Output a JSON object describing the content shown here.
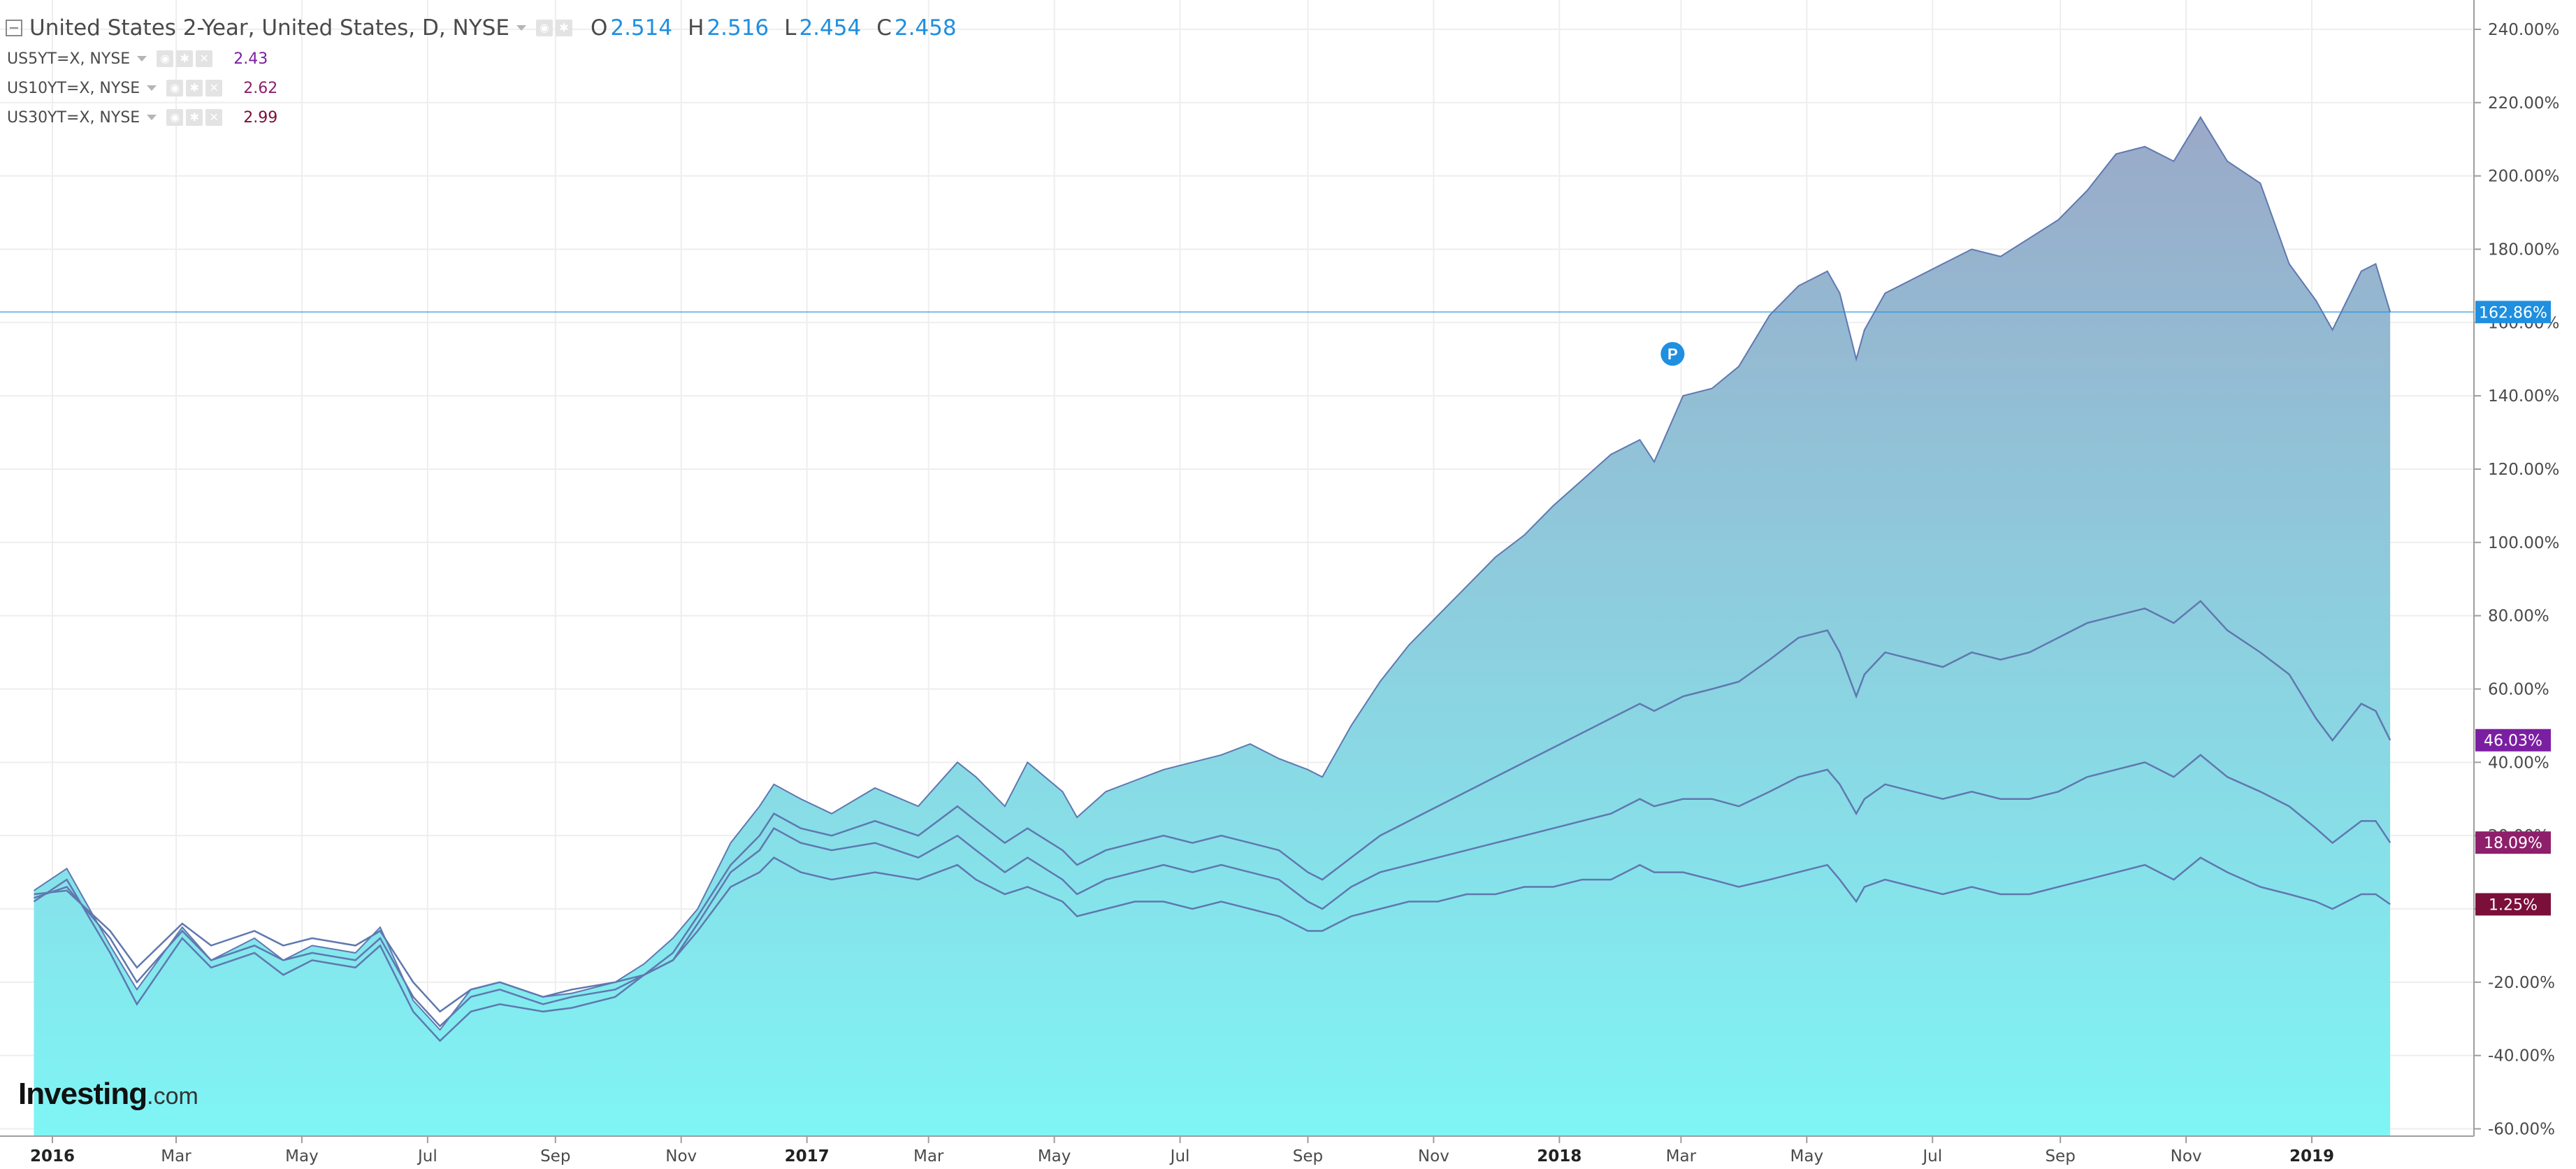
{
  "legend": {
    "main": {
      "title": "United States 2-Year, United States, D, NYSE",
      "ohlc": [
        {
          "key": "O",
          "value": "2.514"
        },
        {
          "key": "H",
          "value": "2.516"
        },
        {
          "key": "L",
          "value": "2.454"
        },
        {
          "key": "C",
          "value": "2.458"
        }
      ]
    },
    "rows": [
      {
        "label": "US5YT=X, NYSE",
        "value": "2.43",
        "color": "#7b1fa2"
      },
      {
        "label": "US10YT=X, NYSE",
        "value": "2.62",
        "color": "#8e1f6b"
      },
      {
        "label": "US30YT=X, NYSE",
        "value": "2.99",
        "color": "#7a0f3a"
      }
    ]
  },
  "logo": {
    "main": "Investing",
    "suffix": ".com"
  },
  "marker": {
    "letter": "P"
  },
  "colors": {
    "accent": "#1f8fe0",
    "area_top": "#9aa9c8",
    "area_bottom": "#7ff5f5",
    "line": "#5f78b0",
    "grid": "#eeeeee"
  },
  "chart_data": {
    "type": "area",
    "ylim": [
      -62,
      248
    ],
    "yticks": [
      "240.00%",
      "220.00%",
      "200.00%",
      "180.00%",
      "160.00%",
      "140.00%",
      "120.00%",
      "100.00%",
      "80.00%",
      "60.00%",
      "40.00%",
      "20.00%",
      "0.00%",
      "-20.00%",
      "-40.00%",
      "-60.00%"
    ],
    "ytick_values": [
      240,
      220,
      200,
      180,
      160,
      140,
      120,
      100,
      80,
      60,
      40,
      20,
      0,
      -20,
      -40,
      -60
    ],
    "xticks": [
      "2016",
      "Mar",
      "May",
      "Jul",
      "Sep",
      "Nov",
      "2017",
      "Mar",
      "May",
      "Jul",
      "Sep",
      "Nov",
      "2018",
      "Mar",
      "May",
      "Jul",
      "Sep",
      "Nov",
      "2019"
    ],
    "xtick_dates": [
      "2016-01-01",
      "2016-03-01",
      "2016-05-01",
      "2016-07-01",
      "2016-09-01",
      "2016-11-01",
      "2017-01-01",
      "2017-03-01",
      "2017-05-01",
      "2017-07-01",
      "2017-09-01",
      "2017-11-01",
      "2018-01-01",
      "2018-03-01",
      "2018-05-01",
      "2018-07-01",
      "2018-09-01",
      "2018-11-01",
      "2019-01-01"
    ],
    "bold_xticks": [
      "2016",
      "2017",
      "2018",
      "2019"
    ],
    "series": [
      {
        "name": "United States 2-Year",
        "last_label": "162.86%",
        "label_color": "#1f8fe0",
        "x": [
          "2015-12-23",
          "2016-01-08",
          "2016-01-29",
          "2016-02-11",
          "2016-03-04",
          "2016-03-18",
          "2016-04-08",
          "2016-04-22",
          "2016-05-06",
          "2016-05-27",
          "2016-06-08",
          "2016-06-24",
          "2016-07-07",
          "2016-07-22",
          "2016-08-05",
          "2016-08-26",
          "2016-09-09",
          "2016-09-30",
          "2016-10-14",
          "2016-10-28",
          "2016-11-09",
          "2016-11-25",
          "2016-12-09",
          "2016-12-16",
          "2016-12-29",
          "2017-01-13",
          "2017-02-03",
          "2017-02-24",
          "2017-03-15",
          "2017-03-24",
          "2017-04-07",
          "2017-04-18",
          "2017-05-05",
          "2017-05-12",
          "2017-05-26",
          "2017-06-09",
          "2017-06-23",
          "2017-07-07",
          "2017-07-21",
          "2017-08-04",
          "2017-08-18",
          "2017-09-01",
          "2017-09-08",
          "2017-09-22",
          "2017-10-06",
          "2017-10-20",
          "2017-11-03",
          "2017-11-17",
          "2017-12-01",
          "2017-12-15",
          "2017-12-29",
          "2018-01-12",
          "2018-01-26",
          "2018-02-09",
          "2018-02-16",
          "2018-03-02",
          "2018-03-16",
          "2018-03-29",
          "2018-04-13",
          "2018-04-27",
          "2018-05-11",
          "2018-05-17",
          "2018-05-25",
          "2018-05-29",
          "2018-06-08",
          "2018-06-22",
          "2018-07-06",
          "2018-07-20",
          "2018-08-03",
          "2018-08-17",
          "2018-08-31",
          "2018-09-14",
          "2018-09-28",
          "2018-10-12",
          "2018-10-26",
          "2018-11-08",
          "2018-11-21",
          "2018-12-07",
          "2018-12-21",
          "2019-01-03",
          "2019-01-11",
          "2019-01-25",
          "2019-02-01",
          "2019-02-08"
        ],
        "values": [
          5,
          11,
          -10,
          -22,
          -5,
          -14,
          -8,
          -14,
          -10,
          -12,
          -5,
          -25,
          -33,
          -22,
          -20,
          -24,
          -23,
          -20,
          -15,
          -8,
          0,
          18,
          28,
          34,
          30,
          26,
          33,
          28,
          40,
          36,
          28,
          40,
          32,
          25,
          32,
          35,
          38,
          40,
          42,
          45,
          41,
          38,
          36,
          50,
          62,
          72,
          80,
          88,
          96,
          102,
          110,
          117,
          124,
          128,
          122,
          140,
          142,
          148,
          162,
          170,
          174,
          168,
          150,
          158,
          168,
          172,
          176,
          180,
          178,
          183,
          188,
          196,
          206,
          208,
          204,
          216,
          204,
          198,
          176,
          166,
          158,
          174,
          176,
          162.86
        ]
      },
      {
        "name": "US5YT=X, NYSE",
        "last_label": "46.03%",
        "label_color": "#7b1fa2",
        "x": [
          "2015-12-23",
          "2016-01-08",
          "2016-01-29",
          "2016-02-11",
          "2016-03-04",
          "2016-03-18",
          "2016-04-08",
          "2016-04-22",
          "2016-05-06",
          "2016-05-27",
          "2016-06-08",
          "2016-06-24",
          "2016-07-07",
          "2016-07-22",
          "2016-08-05",
          "2016-08-26",
          "2016-09-09",
          "2016-09-30",
          "2016-10-14",
          "2016-10-28",
          "2016-11-09",
          "2016-11-25",
          "2016-12-09",
          "2016-12-16",
          "2016-12-29",
          "2017-01-13",
          "2017-02-03",
          "2017-02-24",
          "2017-03-15",
          "2017-03-24",
          "2017-04-07",
          "2017-04-18",
          "2017-05-05",
          "2017-05-12",
          "2017-05-26",
          "2017-06-09",
          "2017-06-23",
          "2017-07-07",
          "2017-07-21",
          "2017-08-04",
          "2017-08-18",
          "2017-09-01",
          "2017-09-08",
          "2017-09-22",
          "2017-10-06",
          "2017-10-20",
          "2017-11-03",
          "2017-11-17",
          "2017-12-01",
          "2017-12-15",
          "2017-12-29",
          "2018-01-12",
          "2018-01-26",
          "2018-02-09",
          "2018-02-16",
          "2018-03-02",
          "2018-03-16",
          "2018-03-29",
          "2018-04-13",
          "2018-04-27",
          "2018-05-11",
          "2018-05-17",
          "2018-05-25",
          "2018-05-29",
          "2018-06-08",
          "2018-06-22",
          "2018-07-06",
          "2018-07-20",
          "2018-08-03",
          "2018-08-17",
          "2018-08-31",
          "2018-09-14",
          "2018-09-28",
          "2018-10-12",
          "2018-10-26",
          "2018-11-08",
          "2018-11-21",
          "2018-12-07",
          "2018-12-21",
          "2019-01-03",
          "2019-01-11",
          "2019-01-25",
          "2019-02-01",
          "2019-02-08"
        ],
        "values": [
          2,
          8,
          -12,
          -26,
          -8,
          -16,
          -12,
          -18,
          -14,
          -16,
          -10,
          -28,
          -36,
          -28,
          -26,
          -28,
          -27,
          -24,
          -18,
          -12,
          -2,
          12,
          20,
          26,
          22,
          20,
          24,
          20,
          28,
          24,
          18,
          22,
          16,
          12,
          16,
          18,
          20,
          18,
          20,
          18,
          16,
          10,
          8,
          14,
          20,
          24,
          28,
          32,
          36,
          40,
          44,
          48,
          52,
          56,
          54,
          58,
          60,
          62,
          68,
          74,
          76,
          70,
          58,
          64,
          70,
          68,
          66,
          70,
          68,
          70,
          74,
          78,
          80,
          82,
          78,
          84,
          76,
          70,
          64,
          52,
          46,
          56,
          54,
          46.03
        ]
      },
      {
        "name": "US10YT=X, NYSE",
        "last_label": "18.09%",
        "label_color": "#8e1f6b",
        "x": [
          "2015-12-23",
          "2016-01-08",
          "2016-01-29",
          "2016-02-11",
          "2016-03-04",
          "2016-03-18",
          "2016-04-08",
          "2016-04-22",
          "2016-05-06",
          "2016-05-27",
          "2016-06-08",
          "2016-06-24",
          "2016-07-07",
          "2016-07-22",
          "2016-08-05",
          "2016-08-26",
          "2016-09-09",
          "2016-09-30",
          "2016-10-14",
          "2016-10-28",
          "2016-11-09",
          "2016-11-25",
          "2016-12-09",
          "2016-12-16",
          "2016-12-29",
          "2017-01-13",
          "2017-02-03",
          "2017-02-24",
          "2017-03-15",
          "2017-03-24",
          "2017-04-07",
          "2017-04-18",
          "2017-05-05",
          "2017-05-12",
          "2017-05-26",
          "2017-06-09",
          "2017-06-23",
          "2017-07-07",
          "2017-07-21",
          "2017-08-04",
          "2017-08-18",
          "2017-09-01",
          "2017-09-08",
          "2017-09-22",
          "2017-10-06",
          "2017-10-20",
          "2017-11-03",
          "2017-11-17",
          "2017-12-01",
          "2017-12-15",
          "2017-12-29",
          "2018-01-12",
          "2018-01-26",
          "2018-02-09",
          "2018-02-16",
          "2018-03-02",
          "2018-03-16",
          "2018-03-29",
          "2018-04-13",
          "2018-04-27",
          "2018-05-11",
          "2018-05-17",
          "2018-05-25",
          "2018-05-29",
          "2018-06-08",
          "2018-06-22",
          "2018-07-06",
          "2018-07-20",
          "2018-08-03",
          "2018-08-17",
          "2018-08-31",
          "2018-09-14",
          "2018-09-28",
          "2018-10-12",
          "2018-10-26",
          "2018-11-08",
          "2018-11-21",
          "2018-12-07",
          "2018-12-21",
          "2019-01-03",
          "2019-01-11",
          "2019-01-25",
          "2019-02-01",
          "2019-02-08"
        ],
        "values": [
          3,
          6,
          -8,
          -20,
          -6,
          -14,
          -10,
          -14,
          -12,
          -14,
          -8,
          -24,
          -32,
          -24,
          -22,
          -26,
          -24,
          -22,
          -18,
          -14,
          -4,
          10,
          16,
          22,
          18,
          16,
          18,
          14,
          20,
          16,
          10,
          14,
          8,
          4,
          8,
          10,
          12,
          10,
          12,
          10,
          8,
          2,
          0,
          6,
          10,
          12,
          14,
          16,
          18,
          20,
          22,
          24,
          26,
          30,
          28,
          30,
          30,
          28,
          32,
          36,
          38,
          34,
          26,
          30,
          34,
          32,
          30,
          32,
          30,
          30,
          32,
          36,
          38,
          40,
          36,
          42,
          36,
          32,
          28,
          22,
          18,
          24,
          24,
          18.09
        ]
      },
      {
        "name": "US30YT=X, NYSE",
        "last_label": "1.25%",
        "label_color": "#7a0f3a",
        "x": [
          "2015-12-23",
          "2016-01-08",
          "2016-01-29",
          "2016-02-11",
          "2016-03-04",
          "2016-03-18",
          "2016-04-08",
          "2016-04-22",
          "2016-05-06",
          "2016-05-27",
          "2016-06-08",
          "2016-06-24",
          "2016-07-07",
          "2016-07-22",
          "2016-08-05",
          "2016-08-26",
          "2016-09-09",
          "2016-09-30",
          "2016-10-14",
          "2016-10-28",
          "2016-11-09",
          "2016-11-25",
          "2016-12-09",
          "2016-12-16",
          "2016-12-29",
          "2017-01-13",
          "2017-02-03",
          "2017-02-24",
          "2017-03-15",
          "2017-03-24",
          "2017-04-07",
          "2017-04-18",
          "2017-05-05",
          "2017-05-12",
          "2017-05-26",
          "2017-06-09",
          "2017-06-23",
          "2017-07-07",
          "2017-07-21",
          "2017-08-04",
          "2017-08-18",
          "2017-09-01",
          "2017-09-08",
          "2017-09-22",
          "2017-10-06",
          "2017-10-20",
          "2017-11-03",
          "2017-11-17",
          "2017-12-01",
          "2017-12-15",
          "2017-12-29",
          "2018-01-12",
          "2018-01-26",
          "2018-02-09",
          "2018-02-16",
          "2018-03-02",
          "2018-03-16",
          "2018-03-29",
          "2018-04-13",
          "2018-04-27",
          "2018-05-11",
          "2018-05-17",
          "2018-05-25",
          "2018-05-29",
          "2018-06-08",
          "2018-06-22",
          "2018-07-06",
          "2018-07-20",
          "2018-08-03",
          "2018-08-17",
          "2018-08-31",
          "2018-09-14",
          "2018-09-28",
          "2018-10-12",
          "2018-10-26",
          "2018-11-08",
          "2018-11-21",
          "2018-12-07",
          "2018-12-21",
          "2019-01-03",
          "2019-01-11",
          "2019-01-25",
          "2019-02-01",
          "2019-02-08"
        ],
        "values": [
          4,
          5,
          -6,
          -16,
          -4,
          -10,
          -6,
          -10,
          -8,
          -10,
          -6,
          -20,
          -28,
          -22,
          -20,
          -24,
          -22,
          -20,
          -18,
          -14,
          -6,
          6,
          10,
          14,
          10,
          8,
          10,
          8,
          12,
          8,
          4,
          6,
          2,
          -2,
          0,
          2,
          2,
          0,
          2,
          0,
          -2,
          -6,
          -6,
          -2,
          0,
          2,
          2,
          4,
          4,
          6,
          6,
          8,
          8,
          12,
          10,
          10,
          8,
          6,
          8,
          10,
          12,
          8,
          2,
          6,
          8,
          6,
          4,
          6,
          4,
          4,
          6,
          8,
          10,
          12,
          8,
          14,
          10,
          6,
          4,
          2,
          0,
          4,
          4,
          1.25
        ]
      }
    ]
  }
}
